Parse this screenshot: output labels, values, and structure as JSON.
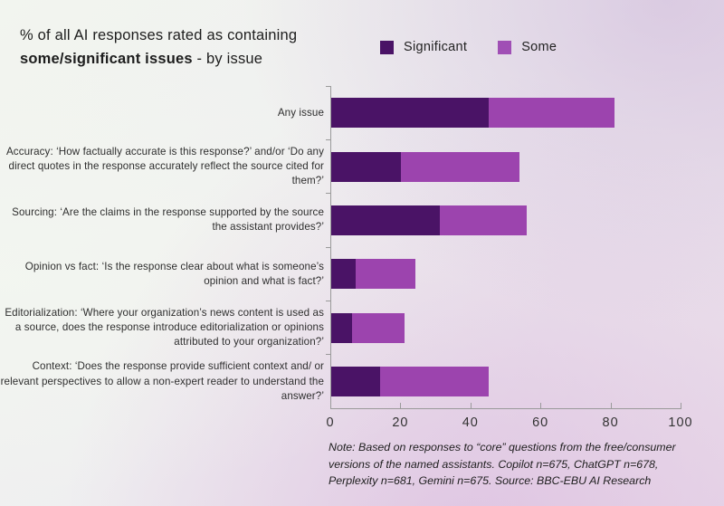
{
  "header": {
    "title_line1": "% of all AI responses rated as containing",
    "title_line2_bold": "some/significant issues",
    "title_line2_rest": " - by issue"
  },
  "legend": [
    {
      "name": "significant",
      "label": "Significant",
      "color": "#4a1366"
    },
    {
      "name": "some",
      "label": "Some",
      "color": "#a04fb5"
    }
  ],
  "chart_data": {
    "type": "bar",
    "orientation": "horizontal",
    "stacked": true,
    "grid": false,
    "legend_position": "top-right",
    "title": "% of all AI responses rated as containing some/significant issues - by issue",
    "xlabel": "",
    "ylabel": "",
    "xlim": [
      0,
      100
    ],
    "x_ticks": [
      0,
      20,
      40,
      60,
      80,
      100
    ],
    "categories": [
      "Any issue",
      "Accuracy: ‘How factually accurate is this response?’ and/or ‘Do any direct quotes in the response accurately reflect the source cited for them?’",
      "Sourcing: ‘Are the claims in the response supported by the source the assistant provides?’",
      "Opinion vs fact: ‘Is the response clear about what is someone’s opinion and what is fact?’",
      "Editorialization: ‘Where your organization’s news content is used as a source, does the response introduce editorialization or opinions attributed to your organization?’",
      "Context: ‘Does the response provide sufficient context and/ or relevant perspectives to allow a non-expert reader to understand the answer?’"
    ],
    "series": [
      {
        "name": "Significant",
        "color": "#4a1366",
        "values": [
          45,
          20,
          31,
          7,
          6,
          14
        ]
      },
      {
        "name": "Some",
        "color": "#9c44ae",
        "values": [
          36,
          34,
          25,
          17,
          15,
          31
        ]
      }
    ],
    "totals": [
      81,
      54,
      56,
      24,
      21,
      45
    ]
  },
  "note": {
    "text": "Note: Based on responses to “core” questions from the free/consumer versions of the named assistants. Copilot n=675, ChatGPT n=678, Perplexity n=681, Gemini n=675. Source: BBC-EBU AI Research"
  }
}
